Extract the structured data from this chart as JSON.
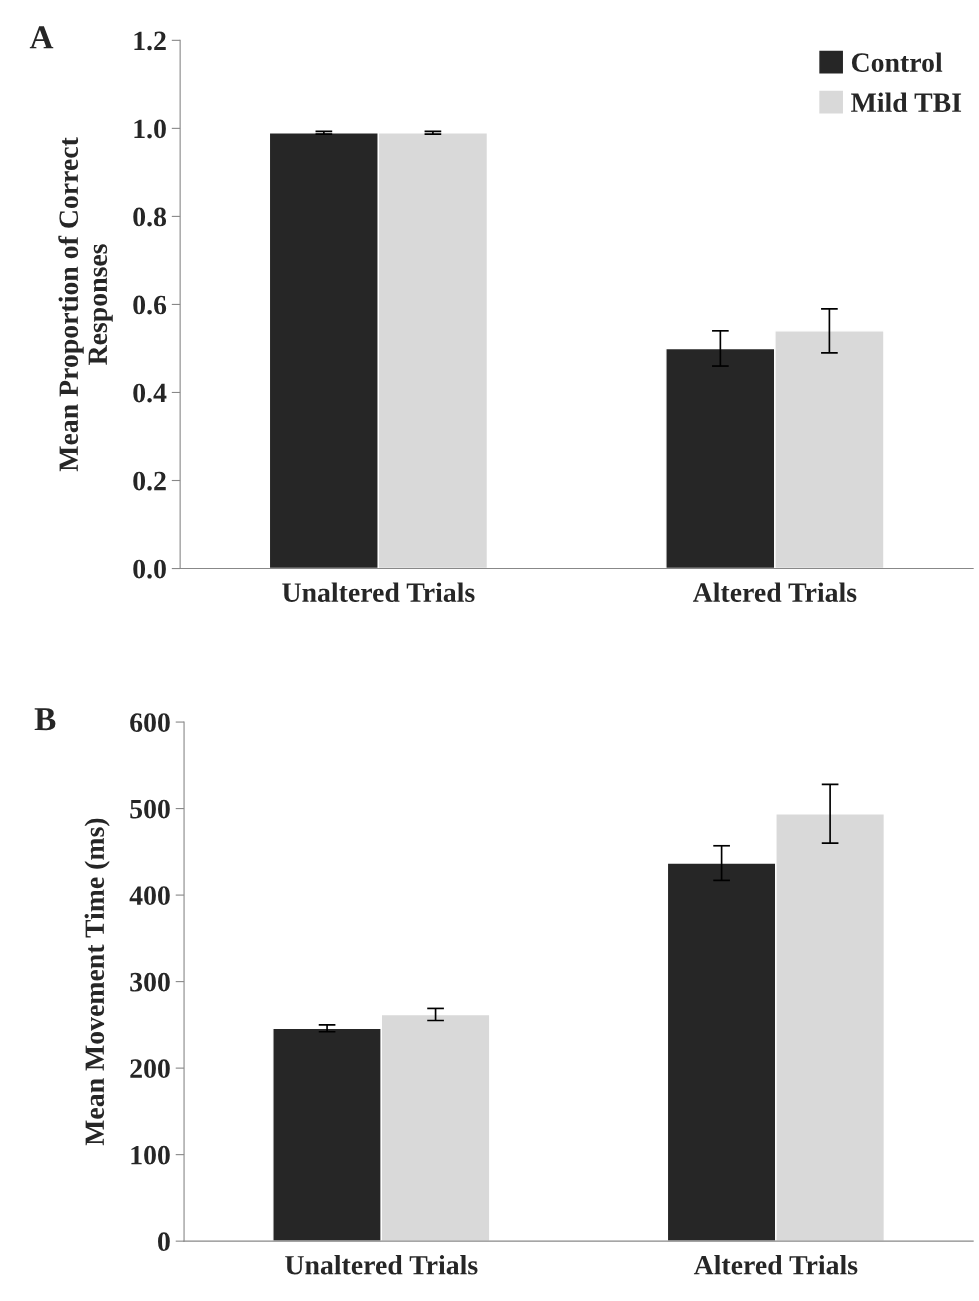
{
  "chart_data": [
    {
      "type": "bar",
      "ylabel": "Mean Proportion of Correct\nResponses",
      "categories": [
        "Unaltered Trials",
        "Altered Trials"
      ],
      "series": [
        {
          "name": "Control",
          "color": "#262626",
          "values": [
            0.99,
            0.5
          ],
          "errors": [
            0.003,
            0.04
          ]
        },
        {
          "name": "Mild TBI",
          "color": "#d9d9d9",
          "values": [
            0.99,
            0.54
          ],
          "errors": [
            0.003,
            0.05
          ]
        }
      ],
      "ylim": [
        0,
        1.2
      ],
      "yticks": [
        {
          "value": 0,
          "label": "0.0"
        },
        {
          "value": 0.2,
          "label": "0.2"
        },
        {
          "value": 0.4,
          "label": "0.4"
        },
        {
          "value": 0.6,
          "label": "0.6"
        },
        {
          "value": 0.8,
          "label": "0.8"
        },
        {
          "value": 1.0,
          "label": "1.0"
        },
        {
          "value": 1.2,
          "label": "1.2"
        }
      ],
      "grid": false,
      "legend": "top right",
      "annotations": [
        "A"
      ]
    },
    {
      "type": "bar",
      "ylabel": "Mean Movement Time (ms)",
      "categories": [
        "Unaltered Trials",
        "Altered Trials"
      ],
      "series": [
        {
          "color": "#262626",
          "values": [
            246,
            437
          ],
          "errors": [
            4,
            20
          ]
        },
        {
          "color": "#d9d9d9",
          "values": [
            262,
            494
          ],
          "errors": [
            7,
            34
          ]
        }
      ],
      "ylim": [
        0,
        600
      ],
      "yticks": [
        0,
        100,
        200,
        300,
        400,
        500,
        600
      ],
      "grid": false,
      "legend": false,
      "annotations": [
        "B"
      ]
    }
  ]
}
